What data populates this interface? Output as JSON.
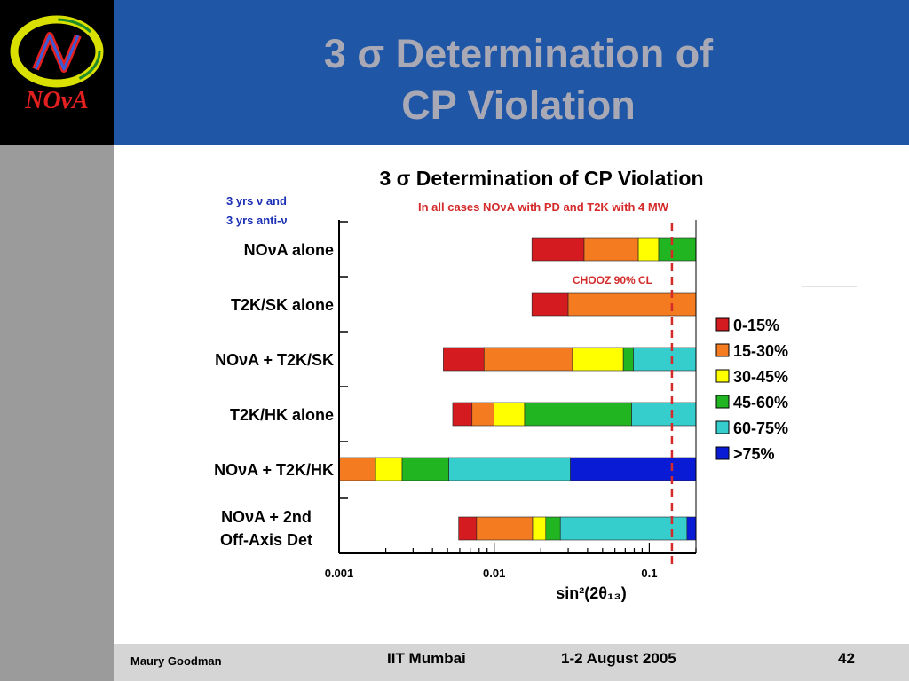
{
  "slide": {
    "title_line1": "3 σ Determination of",
    "title_line2": "CP Violation",
    "logo_text": "NOνA"
  },
  "footer": {
    "author": "Maury Goodman",
    "venue": "IIT Mumbai",
    "date": "1-2 August 2005",
    "page": "42"
  },
  "chart_data": {
    "type": "bar",
    "orientation": "horizontal-stacked",
    "title": "3 σ Determination of CP Violation",
    "subtitle": "In all cases NOνA with PD and T2K with 4 MW",
    "side_note": [
      "3 yrs ν and",
      "3 yrs anti-ν"
    ],
    "xlabel": "sin²(2θ₁₃)",
    "xscale": "log",
    "xlim": [
      0.001,
      0.2
    ],
    "xticks": [
      {
        "value": 0.001,
        "label": "0.001"
      },
      {
        "value": 0.01,
        "label": "0.01"
      },
      {
        "value": 0.1,
        "label": "0.1"
      }
    ],
    "reference_line": {
      "value": 0.14,
      "label": "CHOOZ 90% CL",
      "color": "#d42a2a",
      "style": "dashed"
    },
    "legend": {
      "placement": "right",
      "entries": [
        {
          "label": "0-15%",
          "color": "#d41b1f"
        },
        {
          "label": "15-30%",
          "color": "#f47b1f"
        },
        {
          "label": "30-45%",
          "color": "#ffff00"
        },
        {
          "label": "45-60%",
          "color": "#22b522"
        },
        {
          "label": "60-75%",
          "color": "#36cdcd"
        },
        {
          "label": ">75%",
          "color": "#0a1bd6"
        }
      ]
    },
    "categories": [
      {
        "label": [
          "NOνA alone"
        ],
        "segments": [
          {
            "from": 0.0175,
            "to": 0.038,
            "band": 0
          },
          {
            "from": 0.038,
            "to": 0.085,
            "band": 1
          },
          {
            "from": 0.085,
            "to": 0.115,
            "band": 2
          },
          {
            "from": 0.115,
            "to": 0.2,
            "band": 3
          }
        ]
      },
      {
        "label": [
          "T2K/SK alone"
        ],
        "segments": [
          {
            "from": 0.0175,
            "to": 0.03,
            "band": 0
          },
          {
            "from": 0.03,
            "to": 0.2,
            "band": 1
          }
        ]
      },
      {
        "label": [
          "NOνA + T2K/SK"
        ],
        "segments": [
          {
            "from": 0.0047,
            "to": 0.0086,
            "band": 0
          },
          {
            "from": 0.0086,
            "to": 0.032,
            "band": 1
          },
          {
            "from": 0.032,
            "to": 0.068,
            "band": 2
          },
          {
            "from": 0.068,
            "to": 0.079,
            "band": 3
          },
          {
            "from": 0.079,
            "to": 0.2,
            "band": 4
          }
        ]
      },
      {
        "label": [
          "T2K/HK alone"
        ],
        "segments": [
          {
            "from": 0.0054,
            "to": 0.0072,
            "band": 0
          },
          {
            "from": 0.0072,
            "to": 0.01,
            "band": 1
          },
          {
            "from": 0.01,
            "to": 0.0157,
            "band": 2
          },
          {
            "from": 0.0157,
            "to": 0.077,
            "band": 3
          },
          {
            "from": 0.077,
            "to": 0.2,
            "band": 4
          }
        ]
      },
      {
        "label": [
          "NOνA + T2K/HK"
        ],
        "segments": [
          {
            "from": 0.001,
            "to": 0.00172,
            "band": 1
          },
          {
            "from": 0.00172,
            "to": 0.00255,
            "band": 2
          },
          {
            "from": 0.00255,
            "to": 0.0051,
            "band": 3
          },
          {
            "from": 0.0051,
            "to": 0.031,
            "band": 4
          },
          {
            "from": 0.031,
            "to": 0.2,
            "band": 5
          }
        ]
      },
      {
        "label": [
          "NOνA + 2nd",
          "Off-Axis Det"
        ],
        "segments": [
          {
            "from": 0.0059,
            "to": 0.0077,
            "band": 0
          },
          {
            "from": 0.0077,
            "to": 0.0177,
            "band": 1
          },
          {
            "from": 0.0177,
            "to": 0.0215,
            "band": 2
          },
          {
            "from": 0.0215,
            "to": 0.0267,
            "band": 3
          },
          {
            "from": 0.0267,
            "to": 0.175,
            "band": 4
          },
          {
            "from": 0.175,
            "to": 0.2,
            "band": 5
          }
        ]
      }
    ]
  }
}
